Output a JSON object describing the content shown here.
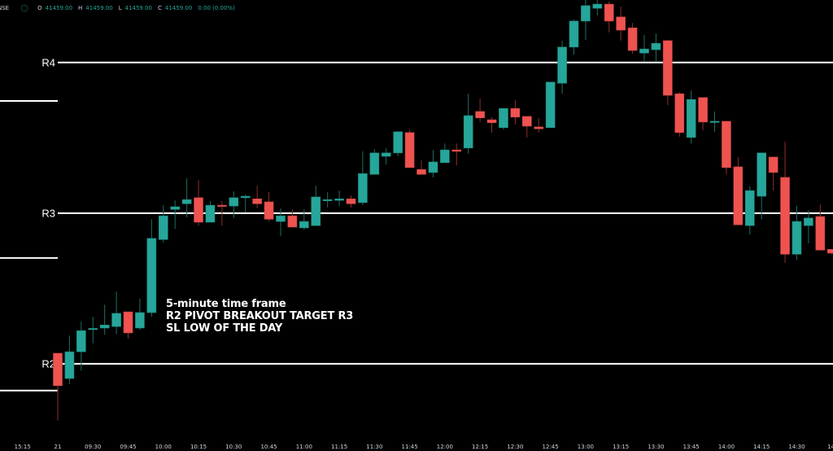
{
  "header": {
    "symbol": "NSE",
    "status_dot_color": "#26a69a",
    "open_label": "O",
    "open": "41459.00",
    "high_label": "H",
    "high": "41459.00",
    "low_label": "L",
    "low": "41459.00",
    "close_label": "C",
    "close": "41459.00",
    "change": "0.00 (0.00%)"
  },
  "annotation": {
    "line1": "5-minute time frame",
    "line2": "R2 PIVOT BREAKOUT TARGET R3",
    "line3": "SL LOW OF THE DAY"
  },
  "chart_data": {
    "type": "candlestick",
    "title": "",
    "xlabel": "",
    "ylabel": "",
    "grid": false,
    "price_axis_visible": false,
    "ylim": [
      40842,
      41966
    ],
    "colors": {
      "up": "#26a69a",
      "down": "#ef5350",
      "background": "#000000",
      "levels": "#ffffff"
    },
    "x_tick_labels": [
      "15:15",
      "21",
      "09:30",
      "09:45",
      "10:00",
      "10:15",
      "10:30",
      "10:45",
      "11:00",
      "11:15",
      "11:30",
      "11:45",
      "12:00",
      "12:15",
      "12:30",
      "12:45",
      "13:00",
      "13:15",
      "13:30",
      "13:45",
      "14:00",
      "14:15",
      "14:30",
      "14:"
    ],
    "pivot_levels": [
      {
        "label": "R2",
        "value": 41000
      },
      {
        "label": "R3",
        "value": 41400
      },
      {
        "label": "R4",
        "value": 41800
      }
    ],
    "previous_session_levels": [
      41698,
      41281,
      40929
    ],
    "candles_ohlc": [
      [
        41028,
        41028,
        40849,
        40942
      ],
      [
        40961,
        41075,
        40946,
        41032
      ],
      [
        41032,
        41112,
        40982,
        41088
      ],
      [
        41092,
        41125,
        41054,
        41094
      ],
      [
        41095,
        41157,
        41077,
        41103
      ],
      [
        41099,
        41192,
        41079,
        41134
      ],
      [
        41138,
        41138,
        41067,
        41082
      ],
      [
        41095,
        41173,
        41090,
        41136
      ],
      [
        41136,
        41384,
        41125,
        41333
      ],
      [
        41330,
        41421,
        41322,
        41393
      ],
      [
        41410,
        41434,
        41358,
        41417
      ],
      [
        41425,
        41493,
        41389,
        41436
      ],
      [
        41441,
        41488,
        41367,
        41376
      ],
      [
        41376,
        41432,
        41376,
        41421
      ],
      [
        41421,
        41432,
        41367,
        41419
      ],
      [
        41419,
        41458,
        41387,
        41441
      ],
      [
        41441,
        41449,
        41402,
        41445
      ],
      [
        41438,
        41473,
        41413,
        41425
      ],
      [
        41430,
        41456,
        41378,
        41384
      ],
      [
        41378,
        41413,
        41339,
        41393
      ],
      [
        41393,
        41410,
        41363,
        41363
      ],
      [
        41361,
        41410,
        41356,
        41378
      ],
      [
        41367,
        41473,
        41367,
        41443
      ],
      [
        41434,
        41456,
        41415,
        41436
      ],
      [
        41434,
        41460,
        41419,
        41438
      ],
      [
        41438,
        41447,
        41415,
        41425
      ],
      [
        41428,
        41564,
        41421,
        41505
      ],
      [
        41503,
        41570,
        41503,
        41560
      ],
      [
        41551,
        41573,
        41529,
        41560
      ],
      [
        41560,
        41618,
        41551,
        41616
      ],
      [
        41614,
        41622,
        41521,
        41521
      ],
      [
        41516,
        41540,
        41503,
        41503
      ],
      [
        41508,
        41568,
        41495,
        41536
      ],
      [
        41534,
        41585,
        41534,
        41568
      ],
      [
        41568,
        41585,
        41527,
        41564
      ],
      [
        41573,
        41717,
        41557,
        41659
      ],
      [
        41670,
        41704,
        41642,
        41653
      ],
      [
        41648,
        41655,
        41614,
        41640
      ],
      [
        41627,
        41678,
        41622,
        41678
      ],
      [
        41678,
        41700,
        41635,
        41655
      ],
      [
        41657,
        41657,
        41601,
        41631
      ],
      [
        41629,
        41653,
        41614,
        41624
      ],
      [
        41627,
        41748,
        41627,
        41748
      ],
      [
        41745,
        41858,
        41717,
        41841
      ],
      [
        41841,
        41914,
        41821,
        41910
      ],
      [
        41910,
        41966,
        41860,
        41951
      ],
      [
        41944,
        41966,
        41925,
        41955
      ],
      [
        41955,
        41962,
        41880,
        41910
      ],
      [
        41921,
        41949,
        41858,
        41886
      ],
      [
        41892,
        41905,
        41823,
        41832
      ],
      [
        41825,
        41873,
        41804,
        41836
      ],
      [
        41834,
        41877,
        41804,
        41851
      ],
      [
        41858,
        41860,
        41687,
        41713
      ],
      [
        41717,
        41722,
        41603,
        41614
      ],
      [
        41601,
        41726,
        41585,
        41702
      ],
      [
        41707,
        41707,
        41620,
        41642
      ],
      [
        41642,
        41670,
        41616,
        41644
      ],
      [
        41644,
        41644,
        41503,
        41521
      ],
      [
        41523,
        41549,
        41369,
        41369
      ],
      [
        41367,
        41471,
        41343,
        41460
      ],
      [
        41445,
        41560,
        41384,
        41560
      ],
      [
        41549,
        41549,
        41460,
        41508
      ],
      [
        41495,
        41590,
        41268,
        41291
      ],
      [
        41291,
        41419,
        41276,
        41378
      ],
      [
        41367,
        41408,
        41320,
        41387
      ],
      [
        41391,
        41423,
        41302,
        41302
      ],
      [
        41304,
        41304,
        41290,
        41294
      ]
    ]
  }
}
